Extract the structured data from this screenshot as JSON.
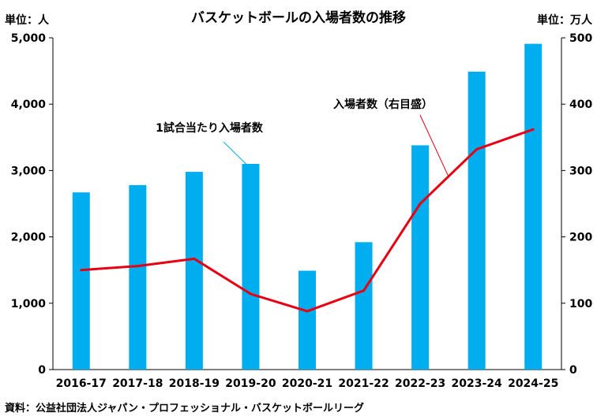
{
  "chart_data": {
    "type": "bar",
    "title": "バスケットボールの入場者数の推移",
    "categories": [
      "2016-17",
      "2017-18",
      "2018-19",
      "2019-20",
      "2020-21",
      "2021-22",
      "2022-23",
      "2023-24",
      "2024-25"
    ],
    "series": [
      {
        "type": "bar",
        "axis": "left",
        "color": "#00aeef",
        "values": [
          2670,
          2780,
          2980,
          3100,
          1490,
          1920,
          3380,
          4490,
          4910
        ]
      },
      {
        "type": "line",
        "axis": "right",
        "color": "#e60012",
        "values": [
          150,
          156,
          167,
          114,
          88,
          119,
          250,
          332,
          362
        ]
      }
    ],
    "y_left": {
      "unit_label": "単位：人",
      "ylim": [
        0,
        5000
      ],
      "ticks": [
        0,
        1000,
        2000,
        3000,
        4000,
        5000
      ],
      "tick_labels": [
        "0",
        "1,000",
        "2,000",
        "3,000",
        "4,000",
        "5,000"
      ]
    },
    "y_right": {
      "unit_label": "単位：万人",
      "ylim": [
        0,
        500
      ],
      "ticks": [
        0,
        100,
        200,
        300,
        400,
        500
      ],
      "tick_labels": [
        "0",
        "100",
        "200",
        "300",
        "400",
        "500"
      ]
    },
    "annotations": [
      {
        "text": "1試合当たり入場者数",
        "target_series": 0,
        "target_index": 3,
        "color": "#00aeef"
      },
      {
        "text": "入場者数（右目盛）",
        "target_series": 1,
        "target_index": 7,
        "color": "#e60012"
      }
    ],
    "grid": false,
    "legend": "none",
    "source": "資料：公益社団法人ジャパン・プロフェッショナル・バスケットボールリーグ"
  }
}
